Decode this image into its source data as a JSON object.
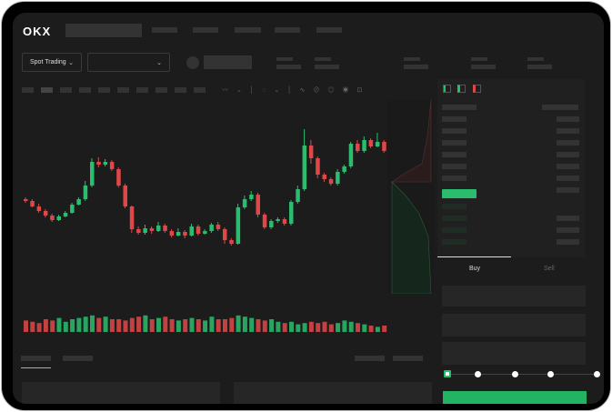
{
  "header": {
    "logo": "OKX"
  },
  "toolbar": {
    "market_select": "Spot Trading",
    "pair_select": ""
  },
  "trade": {
    "buy_tab": "Buy",
    "sell_tab": "Sell",
    "active_tab": "Buy",
    "amount_slider_percent": 0
  },
  "colors": {
    "up": "#2bbd6e",
    "down": "#e04848",
    "background": "#1c1c1c",
    "placeholder": "#333333"
  },
  "icons": {
    "dropdown": "chevron-down-icon",
    "order_book_views": [
      "both-sides-icon",
      "bids-only-icon",
      "asks-only-icon"
    ]
  },
  "chart_data": {
    "type": "candlestick",
    "candles": [
      [
        95,
        93,
        97,
        91
      ],
      [
        93,
        87,
        95,
        86
      ],
      [
        87,
        82,
        90,
        80
      ],
      [
        82,
        77,
        84,
        75
      ],
      [
        77,
        72,
        79,
        70
      ],
      [
        72,
        76,
        78,
        71
      ],
      [
        76,
        80,
        82,
        75
      ],
      [
        80,
        89,
        91,
        79
      ],
      [
        89,
        95,
        97,
        88
      ],
      [
        95,
        110,
        115,
        93
      ],
      [
        110,
        136,
        140,
        108
      ],
      [
        136,
        133,
        141,
        130
      ],
      [
        133,
        136,
        139,
        131
      ],
      [
        136,
        128,
        138,
        126
      ],
      [
        128,
        110,
        130,
        108
      ],
      [
        110,
        87,
        112,
        85
      ],
      [
        87,
        62,
        88,
        58
      ],
      [
        62,
        58,
        65,
        56
      ],
      [
        58,
        63,
        67,
        56
      ],
      [
        63,
        60,
        65,
        57
      ],
      [
        60,
        66,
        70,
        59
      ],
      [
        66,
        60,
        68,
        58
      ],
      [
        60,
        55,
        62,
        53
      ],
      [
        55,
        59,
        63,
        54
      ],
      [
        59,
        55,
        61,
        52
      ],
      [
        55,
        65,
        68,
        54
      ],
      [
        65,
        57,
        67,
        55
      ],
      [
        57,
        60,
        62,
        56
      ],
      [
        60,
        67,
        69,
        58
      ],
      [
        67,
        62,
        70,
        60
      ],
      [
        62,
        50,
        64,
        46
      ],
      [
        50,
        46,
        52,
        44
      ],
      [
        46,
        86,
        90,
        45
      ],
      [
        86,
        95,
        99,
        84
      ],
      [
        95,
        100,
        104,
        93
      ],
      [
        100,
        78,
        102,
        75
      ],
      [
        78,
        64,
        80,
        62
      ],
      [
        64,
        71,
        73,
        62
      ],
      [
        71,
        73,
        75,
        69
      ],
      [
        73,
        68,
        75,
        66
      ],
      [
        68,
        92,
        94,
        66
      ],
      [
        92,
        106,
        110,
        90
      ],
      [
        106,
        154,
        172,
        104
      ],
      [
        154,
        140,
        160,
        134
      ],
      [
        140,
        122,
        142,
        118
      ],
      [
        122,
        117,
        124,
        114
      ],
      [
        117,
        112,
        119,
        110
      ],
      [
        112,
        125,
        128,
        110
      ],
      [
        125,
        131,
        133,
        123
      ],
      [
        131,
        156,
        158,
        129
      ],
      [
        156,
        148,
        160,
        146
      ],
      [
        148,
        160,
        164,
        146
      ],
      [
        160,
        153,
        162,
        151
      ],
      [
        153,
        158,
        168,
        152
      ],
      [
        158,
        148,
        160,
        146
      ]
    ],
    "volume": [
      9,
      8,
      7,
      10,
      9,
      11,
      8,
      10,
      11,
      12,
      13,
      11,
      12,
      10,
      10,
      9,
      11,
      12,
      13,
      10,
      11,
      12,
      10,
      9,
      10,
      11,
      10,
      9,
      12,
      10,
      10,
      11,
      13,
      12,
      11,
      10,
      9,
      10,
      8,
      7,
      8,
      6,
      7,
      8,
      7,
      8,
      6,
      7,
      9,
      8,
      7,
      6,
      5,
      4,
      5
    ]
  }
}
